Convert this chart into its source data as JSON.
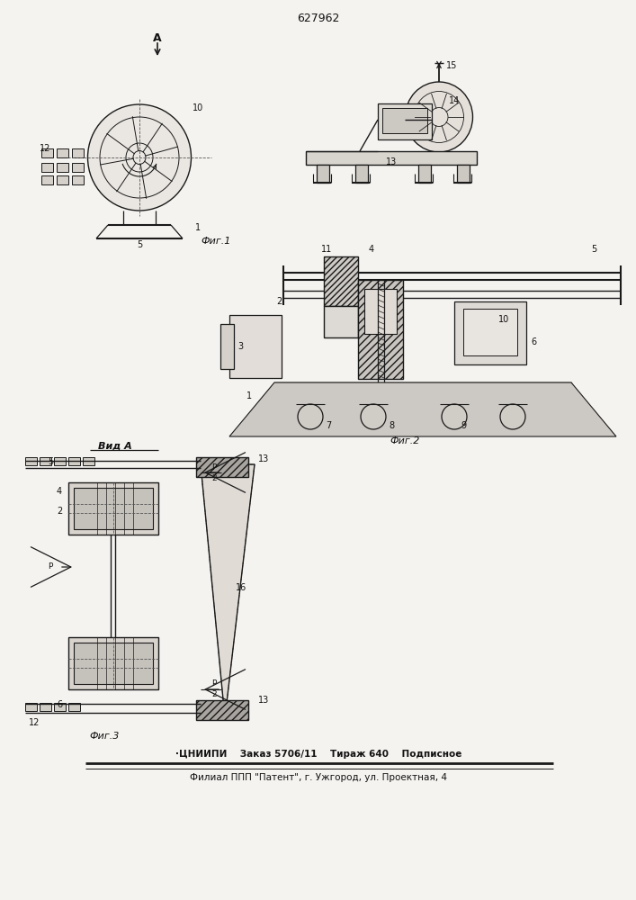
{
  "patent_number": "627962",
  "bg_color": "#f5f3f0",
  "line_color": "#1a1a1a",
  "fig1_label": "Фиг.1",
  "fig2_label": "Фиг.2",
  "fig3_label": "Фиг.3",
  "vidA_label": "Вид A",
  "footer_line1": "·ЦНИИПИ    Заказ 5706/11    Тираж 640    Подписное",
  "footer_line2": "Филиал ППП \"Патент\", г. Ужгород, ул. Проектная, 4"
}
